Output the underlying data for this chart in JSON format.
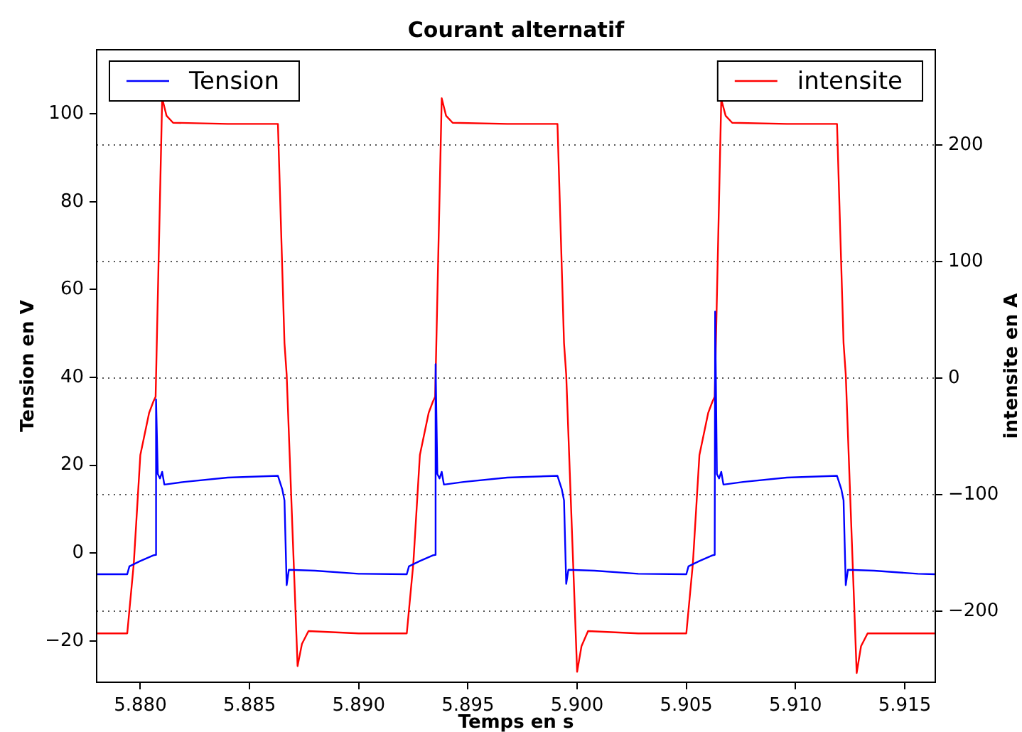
{
  "chart_data": {
    "type": "line",
    "title": "Courant alternatif",
    "xlabel": "Temps en s",
    "ylabel": "Tension en V",
    "y2label": "intensite en A",
    "xlim": [
      5.878,
      5.9164
    ],
    "xticks": [
      {
        "value": 5.88,
        "label": "5.880"
      },
      {
        "value": 5.885,
        "label": "5.885"
      },
      {
        "value": 5.89,
        "label": "5.890"
      },
      {
        "value": 5.895,
        "label": "5.895"
      },
      {
        "value": 5.9,
        "label": "5.900"
      },
      {
        "value": 5.905,
        "label": "5.905"
      },
      {
        "value": 5.91,
        "label": "5.910"
      },
      {
        "value": 5.915,
        "label": "5.915"
      }
    ],
    "ylim": [
      -29.4,
      114.6
    ],
    "yticks": [
      {
        "value": -20,
        "label": "−20"
      },
      0,
      20,
      40,
      60,
      80,
      100
    ],
    "y2lim": [
      -260.9,
      281.6
    ],
    "y2ticks": [
      {
        "value": -200,
        "label": "−200"
      },
      {
        "value": -100,
        "label": "−100"
      },
      0,
      100,
      200
    ],
    "grid": "y2",
    "legend": "top",
    "line_style": "solid",
    "marker": "none",
    "series": [
      {
        "name": "Tension",
        "color": "#0000ff",
        "axis": "y",
        "x": [
          5.878,
          5.8794,
          5.8795,
          5.88,
          5.8806,
          5.8807,
          5.88072,
          5.8808,
          5.8809,
          5.881,
          5.8811,
          5.882,
          5.884,
          5.8863,
          5.8865,
          5.8866,
          5.8867,
          5.8868,
          5.888,
          5.89,
          5.8922,
          5.8923,
          5.8928,
          5.8934,
          5.8935,
          5.89352,
          5.8936,
          5.8937,
          5.8938,
          5.8939,
          5.8948,
          5.8968,
          5.8991,
          5.8993,
          5.8994,
          5.8995,
          5.8996,
          5.9008,
          5.9028,
          5.905,
          5.9051,
          5.9056,
          5.9062,
          5.9063,
          5.90632,
          5.9064,
          5.9065,
          5.9066,
          5.9067,
          5.9076,
          5.9096,
          5.9119,
          5.9121,
          5.9122,
          5.9123,
          5.9124,
          5.9136,
          5.9156,
          5.9164
        ],
        "values": [
          -4.8,
          -4.8,
          -3.0,
          -1.8,
          -0.5,
          -0.4,
          35,
          18,
          17,
          18.5,
          15.6,
          16.2,
          17.2,
          17.6,
          14.5,
          12,
          -7.3,
          -3.8,
          -4.0,
          -4.7,
          -4.8,
          -3.0,
          -1.8,
          -0.5,
          -0.4,
          43,
          18,
          17,
          18.5,
          15.6,
          16.2,
          17.2,
          17.6,
          14.5,
          12,
          -7.0,
          -3.8,
          -4.0,
          -4.7,
          -4.8,
          -3.0,
          -1.8,
          -0.5,
          -0.4,
          55,
          18,
          17,
          18.5,
          15.6,
          16.2,
          17.2,
          17.6,
          14.5,
          12,
          -7.3,
          -3.8,
          -4.0,
          -4.7,
          -4.8
        ]
      },
      {
        "name": "intensite",
        "color": "#ff0000",
        "axis": "y2",
        "x": [
          5.878,
          5.8794,
          5.8797,
          5.88,
          5.8804,
          5.8806,
          5.8807,
          5.881,
          5.8812,
          5.8815,
          5.884,
          5.8863,
          5.8866,
          5.8867,
          5.8872,
          5.8874,
          5.8877,
          5.89,
          5.8922,
          5.8925,
          5.8928,
          5.8932,
          5.8934,
          5.8935,
          5.8938,
          5.894,
          5.8943,
          5.8968,
          5.8991,
          5.8994,
          5.8995,
          5.9,
          5.9002,
          5.9005,
          5.9028,
          5.905,
          5.9053,
          5.9056,
          5.906,
          5.9062,
          5.9063,
          5.9066,
          5.9068,
          5.9071,
          5.9096,
          5.9119,
          5.9122,
          5.9123,
          5.9128,
          5.913,
          5.9133,
          5.9164
        ],
        "values": [
          -219,
          -219,
          -159,
          -66,
          -30,
          -20,
          -16,
          240,
          225,
          219,
          218,
          218,
          30,
          3,
          -247,
          -228,
          -217,
          -219,
          -219,
          -159,
          -66,
          -30,
          -20,
          -16,
          240,
          225,
          219,
          218,
          218,
          30,
          3,
          -252,
          -230,
          -217,
          -219,
          -219,
          -159,
          -66,
          -30,
          -20,
          -16,
          239,
          225,
          219,
          218,
          218,
          30,
          3,
          -253,
          -230,
          -219,
          -219
        ]
      }
    ]
  }
}
